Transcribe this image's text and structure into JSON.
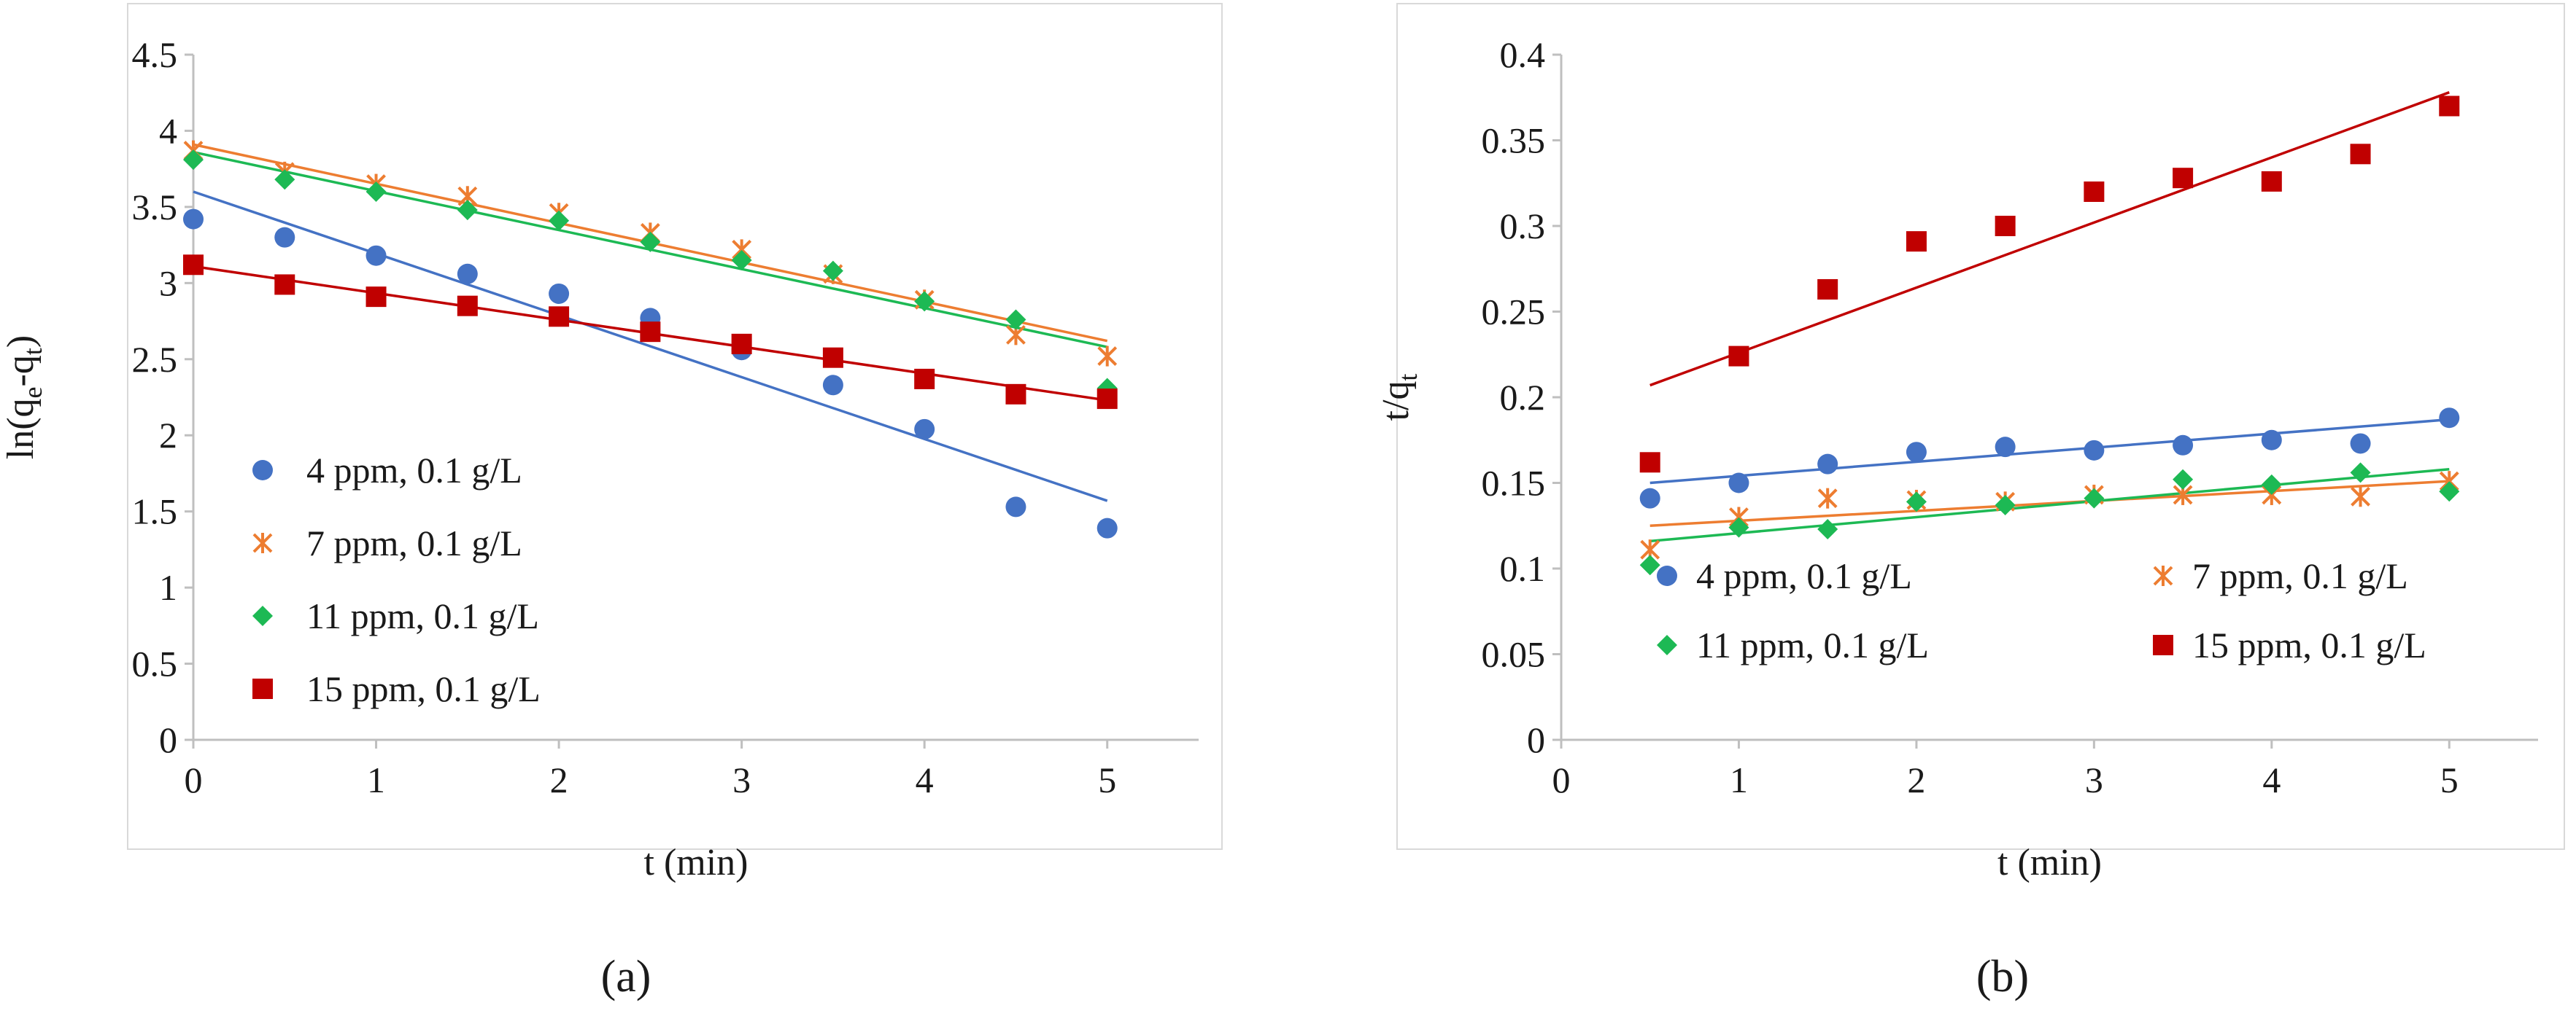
{
  "colors": {
    "blue": "#4472C4",
    "orange": "#ED7D31",
    "green": "#1DB954",
    "red": "#C00000",
    "axis": "#bfbfbf",
    "frame": "#d9d9d9"
  },
  "chart_data": [
    {
      "id": "a",
      "type": "scatter",
      "panel_label": "(a)",
      "xlabel": "t (min)",
      "ylabel_main": "ln(q",
      "ylabel_sub1": "e",
      "ylabel_mid": "-q",
      "ylabel_sub2": "t",
      "ylabel_end": ")",
      "xlim": [
        0,
        5.5
      ],
      "ylim": [
        0,
        4.5
      ],
      "xticks": [
        0,
        1,
        2,
        3,
        4,
        5
      ],
      "yticks": [
        0,
        0.5,
        1,
        1.5,
        2,
        2.5,
        3,
        3.5,
        4,
        4.5
      ],
      "xtick_labels": [
        "0",
        "1",
        "2",
        "3",
        "4",
        "5"
      ],
      "ytick_labels": [
        "0",
        "0.5",
        "1",
        "1.5",
        "2",
        "2.5",
        "3",
        "3.5",
        "4",
        "4.5"
      ],
      "legend_position": "bottom-left",
      "series": [
        {
          "name": "4 ppm, 0.1 g/L",
          "color": "blue",
          "marker": "circle",
          "x": [
            0,
            0.5,
            1,
            1.5,
            2,
            2.5,
            3,
            3.5,
            4,
            4.5,
            5
          ],
          "y": [
            3.42,
            3.3,
            3.18,
            3.06,
            2.93,
            2.77,
            2.56,
            2.33,
            2.04,
            1.53,
            1.39
          ],
          "fit": [
            [
              0,
              3.6
            ],
            [
              5,
              1.57
            ]
          ]
        },
        {
          "name": "7 ppm, 0.1 g/L",
          "color": "orange",
          "marker": "x",
          "x": [
            0,
            0.5,
            1,
            1.5,
            2,
            2.5,
            3,
            3.5,
            4,
            4.5,
            5
          ],
          "y": [
            3.87,
            3.73,
            3.65,
            3.57,
            3.46,
            3.33,
            3.22,
            3.06,
            2.89,
            2.66,
            2.52
          ],
          "fit": [
            [
              0,
              3.91
            ],
            [
              5,
              2.62
            ]
          ]
        },
        {
          "name": "11 ppm, 0.1 g/L",
          "color": "green",
          "marker": "diamond",
          "x": [
            0,
            0.5,
            1,
            1.5,
            2,
            2.5,
            3,
            3.5,
            4,
            4.5,
            5
          ],
          "y": [
            3.81,
            3.68,
            3.6,
            3.48,
            3.41,
            3.27,
            3.15,
            3.08,
            2.88,
            2.76,
            2.31
          ],
          "fit": [
            [
              0,
              3.86
            ],
            [
              5,
              2.58
            ]
          ]
        },
        {
          "name": "15 ppm, 0.1 g/L",
          "color": "red",
          "marker": "square",
          "x": [
            0,
            0.5,
            1,
            1.5,
            2,
            2.5,
            3,
            3.5,
            4,
            4.5,
            5
          ],
          "y": [
            3.12,
            2.99,
            2.91,
            2.85,
            2.78,
            2.68,
            2.6,
            2.51,
            2.37,
            2.27,
            2.24
          ],
          "fit": [
            [
              0,
              3.11
            ],
            [
              5,
              2.23
            ]
          ]
        }
      ]
    },
    {
      "id": "b",
      "type": "scatter",
      "panel_label": "(b)",
      "xlabel": "t (min)",
      "ylabel_main": "t/q",
      "ylabel_sub1": "t",
      "ylabel_mid": "",
      "ylabel_sub2": "",
      "ylabel_end": "",
      "xlim": [
        0,
        5.5
      ],
      "ylim": [
        0,
        0.4
      ],
      "xticks": [
        0,
        1,
        2,
        3,
        4,
        5
      ],
      "yticks": [
        0,
        0.05,
        0.1,
        0.15,
        0.2,
        0.25,
        0.3,
        0.35,
        0.4
      ],
      "xtick_labels": [
        "0",
        "1",
        "2",
        "3",
        "4",
        "5"
      ],
      "ytick_labels": [
        "0",
        "0.05",
        "0.1",
        "0.15",
        "0.2",
        "0.25",
        "0.3",
        "0.35",
        "0.4"
      ],
      "legend_position": "bottom, two columns",
      "series": [
        {
          "name": "4 ppm, 0.1 g/L",
          "color": "blue",
          "marker": "circle",
          "x": [
            0.5,
            1,
            1.5,
            2,
            2.5,
            3,
            3.5,
            4,
            4.5,
            5
          ],
          "y": [
            0.141,
            0.15,
            0.161,
            0.168,
            0.171,
            0.169,
            0.172,
            0.175,
            0.173,
            0.188
          ],
          "fit": [
            [
              0.5,
              0.15
            ],
            [
              5,
              0.187
            ]
          ]
        },
        {
          "name": "7 ppm, 0.1 g/L",
          "color": "orange",
          "marker": "x",
          "x": [
            0.5,
            1,
            1.5,
            2,
            2.5,
            3,
            3.5,
            4,
            4.5,
            5
          ],
          "y": [
            0.111,
            0.13,
            0.141,
            0.14,
            0.139,
            0.143,
            0.143,
            0.143,
            0.142,
            0.151
          ],
          "fit": [
            [
              0.5,
              0.125
            ],
            [
              5,
              0.151
            ]
          ]
        },
        {
          "name": "11 ppm, 0.1 g/L",
          "color": "green",
          "marker": "diamond",
          "x": [
            0.5,
            1,
            1.5,
            2,
            2.5,
            3,
            3.5,
            4,
            4.5,
            5
          ],
          "y": [
            0.102,
            0.124,
            0.123,
            0.139,
            0.137,
            0.141,
            0.152,
            0.149,
            0.156,
            0.145
          ],
          "fit": [
            [
              0.5,
              0.116
            ],
            [
              5,
              0.158
            ]
          ]
        },
        {
          "name": "15 ppm, 0.1 g/L",
          "color": "red",
          "marker": "square",
          "x": [
            0.5,
            1,
            1.5,
            2,
            2.5,
            3,
            3.5,
            4,
            4.5,
            5
          ],
          "y": [
            0.162,
            0.224,
            0.263,
            0.291,
            0.3,
            0.32,
            0.328,
            0.326,
            0.342,
            0.37
          ],
          "fit": [
            [
              0.5,
              0.207
            ],
            [
              5,
              0.378
            ]
          ]
        }
      ]
    }
  ]
}
